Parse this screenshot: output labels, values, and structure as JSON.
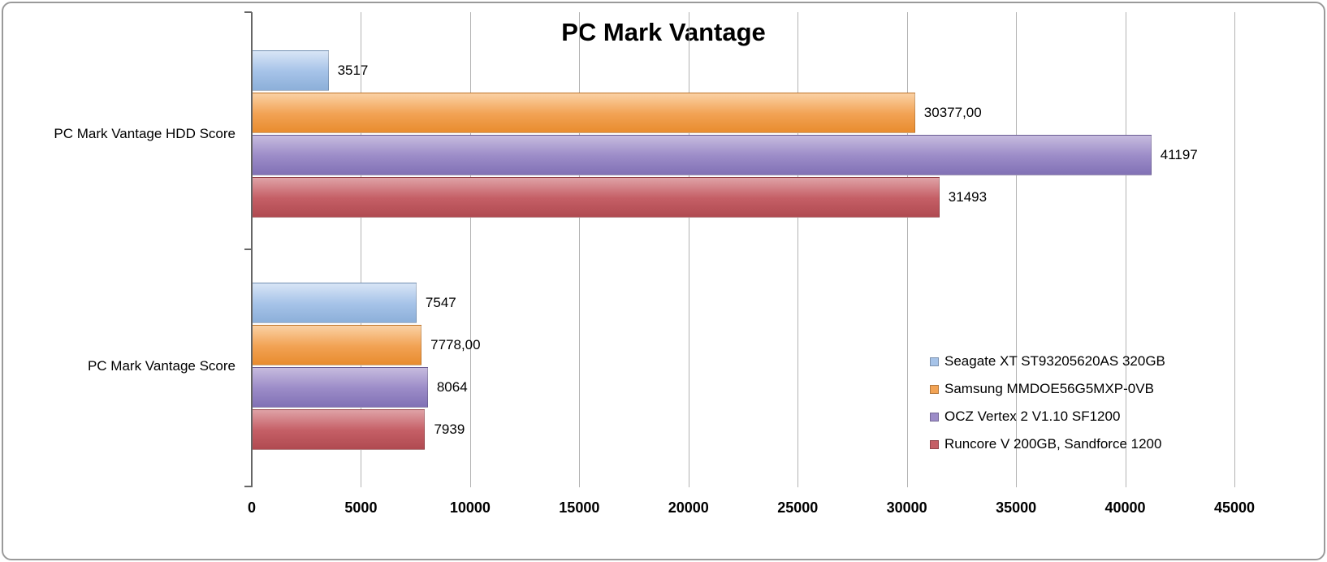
{
  "chart_data": {
    "type": "bar",
    "orientation": "horizontal",
    "title": "PC Mark Vantage",
    "categories": [
      "PC Mark Vantage HDD Score",
      "PC Mark Vantage Score"
    ],
    "series": [
      {
        "name": "Seagate XT ST93205620AS 320GB",
        "values": [
          3517,
          7547
        ],
        "value_labels": [
          "3517",
          "7547"
        ],
        "color": "#a6c3e8",
        "color_light": "#d8e5f6",
        "color_dark": "#8cafd9"
      },
      {
        "name": "Samsung MMDOE56G5MXP-0VB",
        "values": [
          30377,
          7778
        ],
        "value_labels": [
          "30377,00",
          "7778,00"
        ],
        "color": "#f2a355",
        "color_light": "#fad1a4",
        "color_dark": "#e88c2e"
      },
      {
        "name": "OCZ Vertex 2 V1.10 SF1200",
        "values": [
          41197,
          8064
        ],
        "value_labels": [
          "41197",
          "8064"
        ],
        "color": "#9c8cc8",
        "color_light": "#c6bbde",
        "color_dark": "#8171b5"
      },
      {
        "name": "Runcore V 200GB, Sandforce 1200",
        "values": [
          31493,
          7939
        ],
        "value_labels": [
          "31493",
          "7939"
        ],
        "color": "#c55f66",
        "color_light": "#dfa2a6",
        "color_dark": "#b04a51"
      }
    ],
    "x_ticks": [
      {
        "value": 0,
        "label": "0"
      },
      {
        "value": 5000,
        "label": "5000"
      },
      {
        "value": 10000,
        "label": "10000"
      },
      {
        "value": 15000,
        "label": "15000"
      },
      {
        "value": 20000,
        "label": "20000"
      },
      {
        "value": 25000,
        "label": "25000"
      },
      {
        "value": 30000,
        "label": "30000"
      },
      {
        "value": 35000,
        "label": "35000"
      },
      {
        "value": 40000,
        "label": "40000"
      },
      {
        "value": 45000,
        "label": "45000"
      }
    ],
    "xlim": [
      0,
      45000
    ],
    "grid": "vertical",
    "legend_position": "center-right"
  },
  "colors": {
    "background": "#ffffff",
    "grid": "#b3b3b3",
    "axis": "#666666",
    "frame": "#9a9a9a",
    "text": "#000000"
  }
}
